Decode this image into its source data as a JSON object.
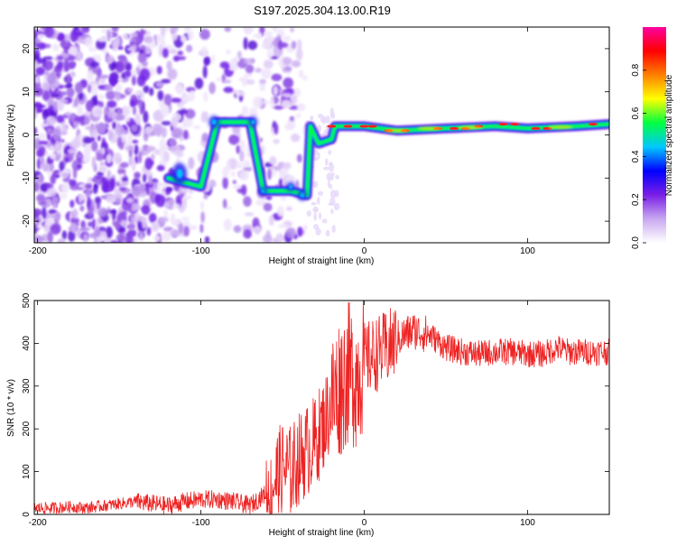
{
  "page_title": "S197.2025.304.13.00.R19",
  "chart_data": [
    {
      "type": "heatmap",
      "title": "S197.2025.304.13.00.R19",
      "xlabel": "Height of straight line (km)",
      "ylabel": "Frequency (Hz)",
      "xlim": [
        -202,
        150
      ],
      "ylim": [
        -25,
        25
      ],
      "xticks": [
        -200,
        -100,
        0,
        100
      ],
      "yticks": [
        -20,
        -10,
        0,
        10,
        20
      ],
      "colorbar": {
        "label": "Normalized spectral amplitude",
        "range": [
          0,
          1
        ],
        "ticks": [
          "0.0",
          "0.2",
          "0.4",
          "0.6",
          "0.8"
        ],
        "colormap": [
          "#ffffff",
          "#c8a8f0",
          "#7a1ee6",
          "#0000ff",
          "#00c8ff",
          "#00ff40",
          "#ffff00",
          "#ff8000",
          "#ff0000",
          "#ff00a0"
        ]
      },
      "ridge": [
        {
          "x": -120,
          "y": -10
        },
        {
          "x": -100,
          "y": -12
        },
        {
          "x": -90,
          "y": 3
        },
        {
          "x": -70,
          "y": 3
        },
        {
          "x": -62,
          "y": -13
        },
        {
          "x": -45,
          "y": -13
        },
        {
          "x": -35,
          "y": -14
        },
        {
          "x": -33,
          "y": 2
        },
        {
          "x": -28,
          "y": -2
        },
        {
          "x": -20,
          "y": -1
        },
        {
          "x": -18,
          "y": 2
        },
        {
          "x": 0,
          "y": 2
        },
        {
          "x": 20,
          "y": 1
        },
        {
          "x": 50,
          "y": 1.5
        },
        {
          "x": 80,
          "y": 2
        },
        {
          "x": 100,
          "y": 1.5
        },
        {
          "x": 130,
          "y": 2
        },
        {
          "x": 150,
          "y": 2.5
        }
      ]
    },
    {
      "type": "line",
      "xlabel": "Height of straight line (km)",
      "ylabel": "SNR (10 * v/v)",
      "xlim": [
        -202,
        150
      ],
      "ylim": [
        0,
        500
      ],
      "xticks": [
        -200,
        -100,
        0,
        100
      ],
      "yticks": [
        0,
        100,
        200,
        300,
        400,
        500
      ],
      "color": "#ee2222",
      "series": [
        {
          "name": "SNR",
          "x": [
            -202,
            -190,
            -180,
            -170,
            -160,
            -150,
            -140,
            -130,
            -120,
            -110,
            -100,
            -90,
            -80,
            -70,
            -60,
            -55,
            -50,
            -45,
            -40,
            -35,
            -30,
            -25,
            -20,
            -15,
            -10,
            -5,
            0,
            5,
            10,
            15,
            20,
            25,
            30,
            40,
            50,
            60,
            70,
            80,
            90,
            100,
            110,
            118,
            125,
            135,
            150
          ],
          "values": [
            15,
            15,
            18,
            15,
            20,
            25,
            30,
            25,
            20,
            30,
            35,
            35,
            30,
            20,
            50,
            80,
            110,
            100,
            130,
            150,
            170,
            210,
            260,
            300,
            330,
            320,
            360,
            370,
            380,
            390,
            410,
            420,
            430,
            420,
            390,
            380,
            375,
            380,
            380,
            375,
            375,
            390,
            380,
            380,
            380
          ]
        }
      ]
    }
  ]
}
